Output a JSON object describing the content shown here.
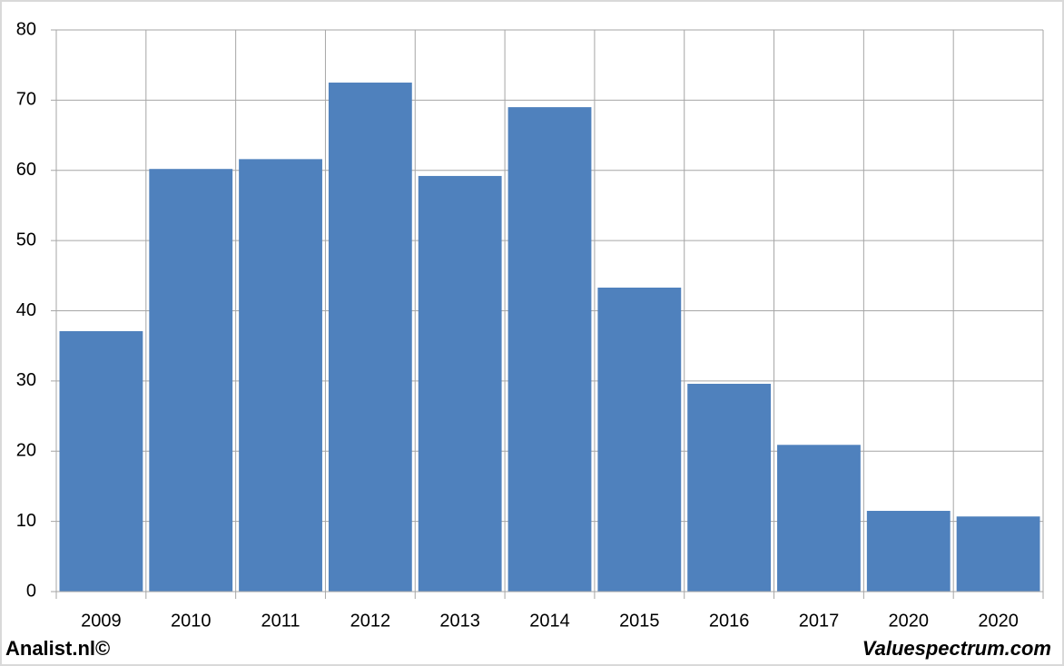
{
  "chart_data": {
    "type": "bar",
    "categories": [
      "2009",
      "2010",
      "2011",
      "2012",
      "2013",
      "2014",
      "2015",
      "2016",
      "2017",
      "2020",
      "2020"
    ],
    "values": [
      37.1,
      60.2,
      61.6,
      72.5,
      59.2,
      69.0,
      43.3,
      29.6,
      20.9,
      11.5,
      10.7
    ],
    "color": "#4f81bd",
    "ylim": [
      0,
      80
    ],
    "yticks": [
      0,
      10,
      20,
      30,
      40,
      50,
      60,
      70,
      80
    ],
    "grid": true,
    "source_left": "Analist.nl©",
    "source_right": "Valuespectrum.com"
  }
}
